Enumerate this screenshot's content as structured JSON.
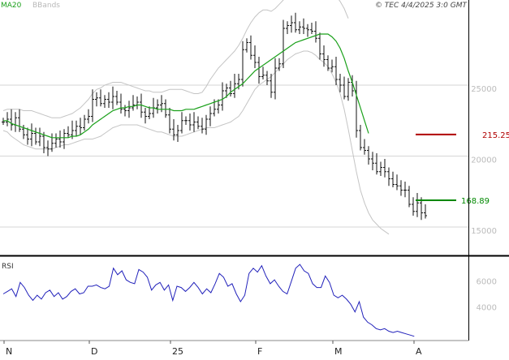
{
  "chart_data": [
    {
      "type": "ohlc",
      "legend": [
        {
          "name": "MA20",
          "color": "#1aa01a"
        },
        {
          "name": "BBands",
          "color": "#bdbdbd"
        }
      ],
      "source_label": "© TEC 4/4/2025 3:0 GMT",
      "y_ticks": [
        {
          "value": 150,
          "label": "15000"
        },
        {
          "value": 200,
          "label": "20000"
        },
        {
          "value": 250,
          "label": "25000"
        }
      ],
      "ylim": [
        130,
        310
      ],
      "x_labels": [
        {
          "label": "N",
          "index": 0
        },
        {
          "label": "D",
          "index": 21
        },
        {
          "label": "25",
          "index": 41
        },
        {
          "label": "F",
          "index": 62
        },
        {
          "label": "M",
          "index": 81
        },
        {
          "label": "A",
          "index": 101
        }
      ],
      "close": [
        224,
        226,
        222,
        227,
        219,
        215,
        212,
        216,
        210,
        214,
        206,
        205,
        209,
        212,
        210,
        216,
        215,
        218,
        221,
        220,
        226,
        228,
        240,
        241,
        237,
        240,
        238,
        242,
        238,
        233,
        232,
        234,
        236,
        238,
        231,
        228,
        230,
        234,
        236,
        237,
        229,
        219,
        215,
        218,
        225,
        225,
        222,
        224,
        221,
        219,
        226,
        230,
        233,
        236,
        246,
        248,
        244,
        251,
        254,
        275,
        280,
        271,
        266,
        256,
        257,
        253,
        245,
        262,
        265,
        290,
        292,
        294,
        289,
        291,
        290,
        289,
        288,
        283,
        272,
        268,
        262,
        263,
        254,
        250,
        242,
        252,
        246,
        218,
        206,
        204,
        198,
        195,
        189,
        192,
        189,
        184,
        180,
        179,
        176,
        176,
        166,
        161,
        167,
        160,
        158
      ],
      "ma20": [
        225,
        225,
        223,
        222,
        221,
        220,
        219,
        218,
        217,
        216,
        215,
        214,
        213,
        213,
        213,
        213,
        213,
        214,
        214,
        215,
        217,
        219,
        222,
        224,
        226,
        228,
        230,
        232,
        233,
        234,
        234,
        235,
        235,
        236,
        236,
        235,
        234,
        234,
        233,
        233,
        233,
        233,
        232,
        232,
        232,
        233,
        233,
        233,
        234,
        235,
        236,
        237,
        238,
        239,
        240,
        242,
        245,
        247,
        249,
        251,
        254,
        257,
        260,
        262,
        264,
        266,
        268,
        270,
        272,
        274,
        276,
        278,
        280,
        281,
        282,
        283,
        284,
        285,
        286,
        286,
        286,
        284,
        281,
        276,
        269,
        260,
        252,
        243,
        234,
        225,
        216
      ],
      "bb_upper": [
        232,
        233,
        233,
        233,
        233,
        232,
        232,
        232,
        231,
        230,
        229,
        228,
        227,
        227,
        227,
        228,
        229,
        230,
        232,
        234,
        237,
        240,
        244,
        247,
        248,
        250,
        251,
        252,
        252,
        252,
        251,
        250,
        249,
        248,
        247,
        246,
        246,
        245,
        245,
        245,
        246,
        247,
        247,
        247,
        247,
        246,
        245,
        244,
        244,
        245,
        249,
        254,
        258,
        262,
        265,
        268,
        271,
        274,
        278,
        283,
        289,
        294,
        298,
        301,
        303,
        303,
        302,
        304,
        307,
        310,
        313,
        316,
        318,
        319,
        320,
        321,
        321,
        321,
        320,
        319,
        318,
        316,
        313,
        309,
        304,
        297
      ],
      "bb_lower": [
        218,
        217,
        214,
        212,
        210,
        208,
        207,
        206,
        205,
        205,
        205,
        205,
        205,
        206,
        207,
        208,
        208,
        209,
        210,
        211,
        212,
        212,
        212,
        213,
        214,
        216,
        218,
        220,
        221,
        222,
        222,
        222,
        222,
        222,
        221,
        220,
        219,
        218,
        217,
        217,
        216,
        215,
        214,
        214,
        214,
        215,
        216,
        217,
        218,
        219,
        220,
        220,
        220,
        221,
        222,
        223,
        224,
        226,
        228,
        232,
        237,
        242,
        247,
        250,
        252,
        254,
        256,
        259,
        262,
        265,
        268,
        270,
        272,
        273,
        274,
        274,
        273,
        271,
        268,
        266,
        263,
        258,
        252,
        244,
        233,
        219,
        204,
        189,
        176,
        167,
        160,
        155,
        152,
        149,
        147,
        145
      ]
    },
    {
      "type": "line",
      "label": "RSI",
      "y_ticks": [
        {
          "value": 40,
          "label": "4000"
        },
        {
          "value": 60,
          "label": "6000"
        }
      ],
      "ylim": [
        15,
        80
      ],
      "color": "#2222bb",
      "values": [
        50,
        52,
        54,
        48,
        59,
        55,
        49,
        45,
        49,
        46,
        51,
        53,
        48,
        51,
        46,
        48,
        52,
        54,
        50,
        51,
        56,
        56,
        57,
        55,
        54,
        56,
        70,
        65,
        68,
        61,
        59,
        58,
        69,
        67,
        63,
        53,
        57,
        59,
        53,
        57,
        45,
        56,
        55,
        52,
        55,
        59,
        55,
        50,
        54,
        51,
        58,
        66,
        63,
        56,
        58,
        50,
        44,
        49,
        66,
        70,
        67,
        72,
        64,
        58,
        61,
        56,
        52,
        50,
        60,
        70,
        73,
        68,
        66,
        58,
        55,
        55,
        64,
        59,
        49,
        47,
        49,
        46,
        42,
        36,
        44,
        32,
        28,
        26,
        23,
        22,
        23,
        21,
        20,
        21,
        20,
        19,
        18,
        17
      ]
    }
  ],
  "annotations": [
    {
      "label": "215.25",
      "value": 215.25,
      "color": "#b00000"
    },
    {
      "label": "168.89",
      "value": 168.89,
      "color": "#008800"
    }
  ]
}
